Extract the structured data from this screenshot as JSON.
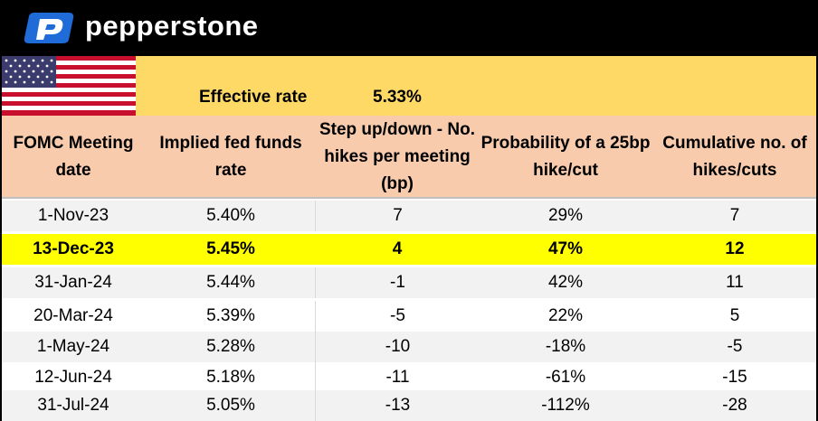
{
  "brand": {
    "name": "pepperstone",
    "logo_color": "#1f6bd8"
  },
  "summary": {
    "label": "Effective rate",
    "value": "5.33%",
    "band_color": "#ffd966"
  },
  "table": {
    "headers": [
      "FOMC Meeting date",
      "Implied fed funds rate",
      "Step up/down - No. hikes per meeting (bp)",
      "Probability of a 25bp hike/cut",
      "Cumulative no. of hikes/cuts"
    ],
    "header_color": "#f8cbad",
    "highlight_color": "#ffff00",
    "rows": [
      [
        "1-Nov-23",
        "5.40%",
        "7",
        "29%",
        "7"
      ],
      [
        "13-Dec-23",
        "5.45%",
        "4",
        "47%",
        "12"
      ],
      [
        "31-Jan-24",
        "5.44%",
        "-1",
        "42%",
        "11"
      ],
      [
        "20-Mar-24",
        "5.39%",
        "-5",
        "22%",
        "5"
      ],
      [
        "1-May-24",
        "5.28%",
        "-10",
        "-18%",
        "-5"
      ],
      [
        "12-Jun-24",
        "5.18%",
        "-11",
        "-61%",
        "-15"
      ],
      [
        "31-Jul-24",
        "5.05%",
        "-13",
        "-112%",
        "-28"
      ]
    ]
  }
}
